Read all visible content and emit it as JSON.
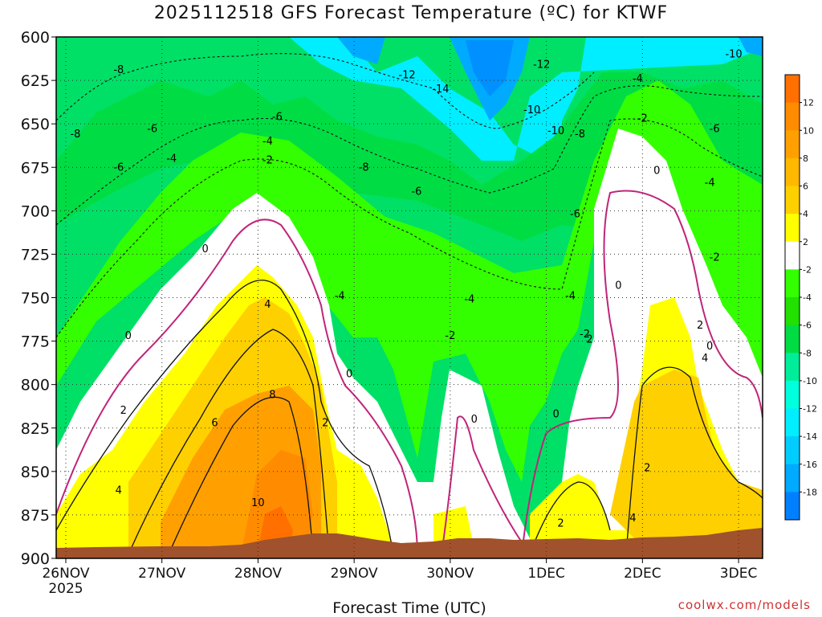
{
  "title": "2025112518 GFS Forecast Temperature (ºC) for KTWF",
  "xlabel": "Forecast Time (UTC)",
  "credit": "coolwx.com/models",
  "chart_data": {
    "type": "heatmap",
    "variable": "temperature",
    "units": "ºC",
    "y_axis": {
      "scale": "pressure",
      "ticks": [
        600,
        625,
        650,
        675,
        700,
        725,
        750,
        775,
        800,
        825,
        850,
        875,
        900
      ],
      "range": [
        600,
        900
      ],
      "inverted": true
    },
    "x_axis": {
      "ticks": [
        {
          "label": "26NOV",
          "sub": "2025",
          "day": 0
        },
        {
          "label": "27NOV",
          "day": 1
        },
        {
          "label": "28NOV",
          "day": 2
        },
        {
          "label": "29NOV",
          "day": 3
        },
        {
          "label": "30NOV",
          "day": 4
        },
        {
          "label": "1DEC",
          "day": 5
        },
        {
          "label": "2DEC",
          "day": 6
        },
        {
          "label": "3DEC",
          "day": 7
        }
      ],
      "range_days": [
        -0.1,
        7.25
      ]
    },
    "grid": true,
    "colorbar": {
      "position": "right",
      "labels": [
        "12",
        "10",
        "8",
        "6",
        "4",
        "2",
        "-2",
        "-4",
        "-6",
        "-8",
        "-10",
        "-12",
        "-14",
        "-16",
        "-18"
      ],
      "bins": [
        {
          "min": 12,
          "max": 14,
          "color": "#ff7000"
        },
        {
          "min": 10,
          "max": 12,
          "color": "#ff8c00"
        },
        {
          "min": 8,
          "max": 10,
          "color": "#ffa000"
        },
        {
          "min": 6,
          "max": 8,
          "color": "#ffb800"
        },
        {
          "min": 4,
          "max": 6,
          "color": "#ffd000"
        },
        {
          "min": 2,
          "max": 4,
          "color": "#ffff00"
        },
        {
          "min": -2,
          "max": 2,
          "color": "#ffffff"
        },
        {
          "min": -4,
          "max": -2,
          "color": "#33ff00"
        },
        {
          "min": -6,
          "max": -4,
          "color": "#22e000"
        },
        {
          "min": -8,
          "max": -6,
          "color": "#00dd44"
        },
        {
          "min": -10,
          "max": -8,
          "color": "#00ee99"
        },
        {
          "min": -12,
          "max": -10,
          "color": "#00ffdd"
        },
        {
          "min": -14,
          "max": -12,
          "color": "#00eeff"
        },
        {
          "min": -16,
          "max": -14,
          "color": "#00ccff"
        },
        {
          "min": -18,
          "max": -16,
          "color": "#00aaff"
        },
        {
          "min": -20,
          "max": -18,
          "color": "#0080ff"
        }
      ]
    },
    "terrain_color": "#a0522d",
    "freezing_line_color": "#c0257a",
    "isotherms": [
      {
        "label": "-14",
        "day": 3.9,
        "p": 630
      },
      {
        "label": "-12",
        "day": 3.55,
        "p": 622
      },
      {
        "label": "-12",
        "day": 4.95,
        "p": 616
      },
      {
        "label": "-10",
        "day": 4.85,
        "p": 642
      },
      {
        "label": "-10",
        "day": 5.1,
        "p": 654
      },
      {
        "label": "-10",
        "day": 6.95,
        "p": 610
      },
      {
        "label": "-8",
        "day": 0.55,
        "p": 619
      },
      {
        "label": "-8",
        "day": 0.1,
        "p": 656
      },
      {
        "label": "-8",
        "day": 5.35,
        "p": 656
      },
      {
        "label": "-8",
        "day": 3.1,
        "p": 675
      },
      {
        "label": "-6",
        "day": 0.9,
        "p": 653
      },
      {
        "label": "-6",
        "day": 2.2,
        "p": 646
      },
      {
        "label": "-6",
        "day": 0.55,
        "p": 675
      },
      {
        "label": "-6",
        "day": 3.65,
        "p": 689
      },
      {
        "label": "-6",
        "day": 5.3,
        "p": 702
      },
      {
        "label": "-6",
        "day": 6.75,
        "p": 653
      },
      {
        "label": "-4",
        "day": 2.1,
        "p": 660
      },
      {
        "label": "-4",
        "day": 1.1,
        "p": 670
      },
      {
        "label": "-4",
        "day": 2.85,
        "p": 749
      },
      {
        "label": "-4",
        "day": 4.2,
        "p": 751
      },
      {
        "label": "-4",
        "day": 5.25,
        "p": 749
      },
      {
        "label": "-4",
        "day": 5.95,
        "p": 624
      },
      {
        "label": "-4",
        "day": 6.7,
        "p": 684
      },
      {
        "label": "-2",
        "day": 2.1,
        "p": 671
      },
      {
        "label": "-2",
        "day": 4.0,
        "p": 772
      },
      {
        "label": "-2",
        "day": 5.4,
        "p": 771
      },
      {
        "label": "-2",
        "day": 6.0,
        "p": 647
      },
      {
        "label": "-2",
        "day": 6.75,
        "p": 727
      },
      {
        "label": "0",
        "day": 0.65,
        "p": 772
      },
      {
        "label": "0",
        "day": 1.45,
        "p": 722
      },
      {
        "label": "0",
        "day": 2.95,
        "p": 794
      },
      {
        "label": "0",
        "day": 4.25,
        "p": 820
      },
      {
        "label": "0",
        "day": 5.1,
        "p": 817
      },
      {
        "label": "0",
        "day": 5.75,
        "p": 743
      },
      {
        "label": "0",
        "day": 6.15,
        "p": 677
      },
      {
        "label": "0",
        "day": 6.7,
        "p": 778
      },
      {
        "label": "2",
        "day": 0.6,
        "p": 815
      },
      {
        "label": "2",
        "day": 2.7,
        "p": 822
      },
      {
        "label": "2",
        "day": 5.45,
        "p": 774
      },
      {
        "label": "2",
        "day": 5.15,
        "p": 880
      },
      {
        "label": "2",
        "day": 6.05,
        "p": 848
      },
      {
        "label": "2",
        "day": 6.6,
        "p": 766
      },
      {
        "label": "4",
        "day": 0.55,
        "p": 861
      },
      {
        "label": "4",
        "day": 2.1,
        "p": 754
      },
      {
        "label": "4",
        "day": 5.9,
        "p": 877
      },
      {
        "label": "4",
        "day": 6.65,
        "p": 785
      },
      {
        "label": "6",
        "day": 1.55,
        "p": 822
      },
      {
        "label": "8",
        "day": 2.15,
        "p": 806
      },
      {
        "label": "10",
        "day": 2.0,
        "p": 868
      }
    ]
  }
}
